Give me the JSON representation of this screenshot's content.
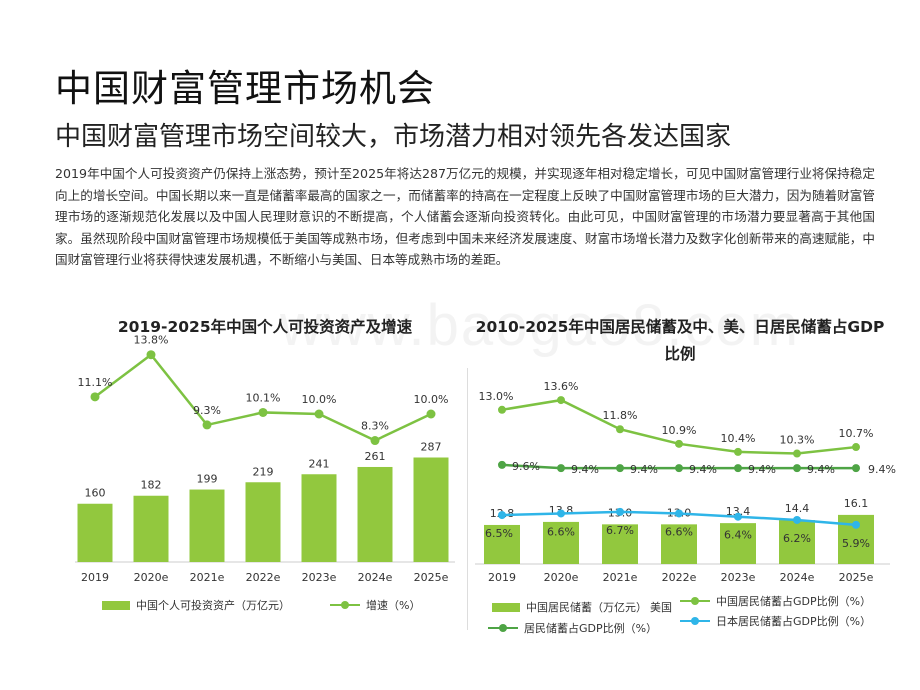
{
  "page": {
    "title": "中国财富管理市场机会",
    "subtitle": "中国财富管理市场空间较大，市场潜力相对领先各发达国家",
    "paragraph": "2019年中国个人可投资资产仍保持上涨态势，预计至2025年将达287万亿元的规模，并实现逐年相对稳定增长，可见中国财富管理行业将保持稳定向上的增长空间。中国长期以来一直是储蓄率最高的国家之一，而储蓄率的持高在一定程度上反映了中国财富管理市场的巨大潜力，因为随着财富管理市场的逐渐规范化发展以及中国人民理财意识的不断提高，个人储蓄会逐渐向投资转化。由此可见，中国财富管理的市场潜力要显著高于其他国家。虽然现阶段中国财富管理市场规模低于美国等成熟市场，但考虑到中国未来经济发展速度、财富市场增长潜力及数字化创新带来的高速赋能，中国财富管理行业将获得快速发展机遇，不断缩小与美国、日本等成熟市场的差距。",
    "watermark": "www.baogao8.com"
  },
  "colors": {
    "bar": "#92c83e",
    "line_green": "#7dc242",
    "line_dark_green": "#4ea445",
    "line_blue": "#2fb5e8"
  },
  "chart_data": [
    {
      "type": "bar",
      "title": "2019-2025年中国个人可投资资产及增速",
      "categories": [
        "2019",
        "2020e",
        "2021e",
        "2022e",
        "2023e",
        "2024e",
        "2025e"
      ],
      "series": [
        {
          "name": "中国个人可投资资产（万亿元）",
          "type": "bar",
          "values": [
            160,
            182,
            199,
            219,
            241,
            261,
            287
          ],
          "labels": [
            "160",
            "182",
            "199",
            "219",
            "241",
            "261",
            "287"
          ]
        },
        {
          "name": "增速（%）",
          "type": "line",
          "values": [
            11.1,
            13.8,
            9.3,
            10.1,
            10.0,
            8.3,
            10.0
          ],
          "labels": [
            "11.1%",
            "13.8%",
            "9.3%",
            "10.1%",
            "10.0%",
            "8.3%",
            "10.0%"
          ]
        }
      ],
      "legend_position": "bottom"
    },
    {
      "type": "bar",
      "title": "2010-2025年中国居民储蓄及中、美、日居民储蓄占GDP比例",
      "categories": [
        "2019",
        "2020e",
        "2021e",
        "2022e",
        "2023e",
        "2024e",
        "2025e"
      ],
      "series": [
        {
          "name": "中国居民储蓄（万亿元）",
          "type": "bar",
          "values": [
            12.8,
            13.8,
            13.0,
            13.0,
            13.4,
            14.4,
            16.1
          ],
          "labels": [
            "12.8",
            "13.8",
            "13.0",
            "13.0",
            "13.4",
            "14.4",
            "16.1"
          ]
        },
        {
          "name": "中国居民储蓄占GDP比例（%）",
          "type": "line",
          "values": [
            13.0,
            13.6,
            11.8,
            10.9,
            10.4,
            10.3,
            10.7
          ],
          "labels": [
            "13.0%",
            "13.6%",
            "11.8%",
            "10.9%",
            "10.4%",
            "10.3%",
            "10.7%"
          ]
        },
        {
          "name": "美国居民储蓄占GDP比例（%）",
          "type": "line",
          "values": [
            9.6,
            9.4,
            9.4,
            9.4,
            9.4,
            9.4,
            9.4
          ],
          "labels": [
            "9.6%",
            "9.4%",
            "9.4%",
            "9.4%",
            "9.4%",
            "9.4%",
            "9.4%"
          ]
        },
        {
          "name": "日本居民储蓄占GDP比例（%）",
          "type": "line",
          "values": [
            6.5,
            6.6,
            6.7,
            6.6,
            6.4,
            6.2,
            5.9
          ],
          "labels": [
            "6.5%",
            "6.6%",
            "6.7%",
            "6.6%",
            "6.4%",
            "6.2%",
            "5.9%"
          ]
        }
      ],
      "legend_position": "bottom",
      "legend": {
        "row1_bar": "中国居民储蓄（万亿元）",
        "row1_suffix": "美国",
        "row1_line": "中国居民储蓄占GDP比例（%）",
        "row2_line": "居民储蓄占GDP比例（%）",
        "row2_blue": "日本居民储蓄占GDP比例（%）"
      }
    }
  ]
}
